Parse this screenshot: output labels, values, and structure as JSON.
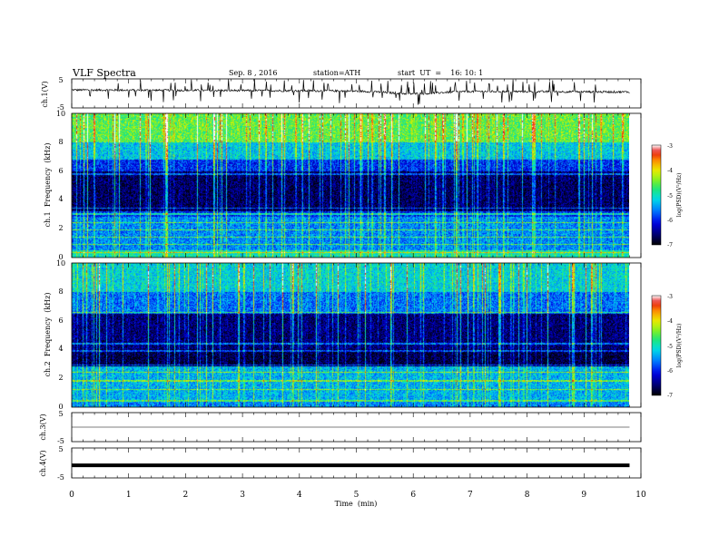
{
  "header": {
    "title": "VLF Spectra",
    "date": "Sep. 8 , 2016",
    "station": "station=ATH",
    "start": "start  UT  =    16: 10: 1"
  },
  "chart_data": [
    {
      "type": "line",
      "panel": "ch1-waveform",
      "ylabel": "ch.1(V)",
      "ylim": [
        -5,
        5
      ],
      "y_ticks": [
        "5",
        "-5"
      ],
      "baseline_start": 1.2,
      "baseline_end": 0.5,
      "baseline_dip_at_min": 6.0,
      "noise_amplitude": 0.35,
      "spike_count": 80,
      "trace_color": "#000000"
    },
    {
      "type": "heatmap",
      "panel": "ch1-spectrogram",
      "ylabel": "ch.1  Frequency  (kHz)",
      "ylim": [
        0,
        10
      ],
      "y_ticks": [
        "0",
        "2",
        "4",
        "6",
        "8",
        "10"
      ],
      "colorbar_label": "log(PSD)(V²/Hz)",
      "colorbar_ticks": [
        "-3",
        "-4",
        "-5",
        "-6",
        "-7"
      ],
      "colorbar_range": [
        -7,
        -3
      ],
      "description_levels": {
        "band_0_0.5kHz": -5.0,
        "band_0.5_2.8kHz": -5.6,
        "band_2.8_3.2kHz": -6.0,
        "band_3.2_6.0kHz": -6.7,
        "band_6.0_6.8kHz": -6.0,
        "band_6.8_8.0kHz": -5.3,
        "band_8.0_10kHz": -4.6
      },
      "horizontal_lines_khz": [
        0.3,
        0.9,
        1.4,
        1.9,
        2.4,
        3.0,
        3.4,
        5.8
      ],
      "time_range_min": [
        0,
        9.8
      ]
    },
    {
      "type": "heatmap",
      "panel": "ch2-spectrogram",
      "ylabel": "ch.2  Frequency  (kHz)",
      "ylim": [
        0,
        10
      ],
      "y_ticks": [
        "0",
        "2",
        "4",
        "6",
        "8",
        "10"
      ],
      "colorbar_label": "log(PSD)(V²/Hz)",
      "colorbar_ticks": [
        "-3",
        "-4",
        "-5",
        "-6",
        "-7"
      ],
      "colorbar_range": [
        -7,
        -3
      ],
      "description_levels": {
        "band_0_0.5kHz": -5.6,
        "band_0.5_2.8kHz": -5.4,
        "band_2.8_4.0kHz": -6.8,
        "band_4.0_6.5kHz": -6.6,
        "band_6.5_8.0kHz": -5.7,
        "band_8.0_10kHz": -5.2
      },
      "horizontal_lines_khz": [
        0.4,
        1.2,
        1.8,
        2.4,
        2.9,
        3.9,
        4.4,
        6.6
      ],
      "time_range_min": [
        0,
        9.8
      ]
    },
    {
      "type": "line",
      "panel": "ch3-waveform",
      "ylabel": "ch.3(V)",
      "ylim": [
        -5,
        5
      ],
      "y_ticks": [
        "5",
        "-5"
      ],
      "baseline": 0,
      "trace_color": "#000000"
    },
    {
      "type": "line",
      "panel": "ch4-waveform",
      "ylabel": "ch.4(V)",
      "ylim": [
        -5,
        5
      ],
      "y_ticks": [
        "5",
        "-5"
      ],
      "baseline": -0.8,
      "trace_color": "#000000"
    }
  ],
  "xaxis": {
    "label": "Time  (min)",
    "xlim": [
      0,
      10
    ],
    "ticks": [
      "0",
      "1",
      "2",
      "3",
      "4",
      "5",
      "6",
      "7",
      "8",
      "9",
      "10"
    ]
  }
}
